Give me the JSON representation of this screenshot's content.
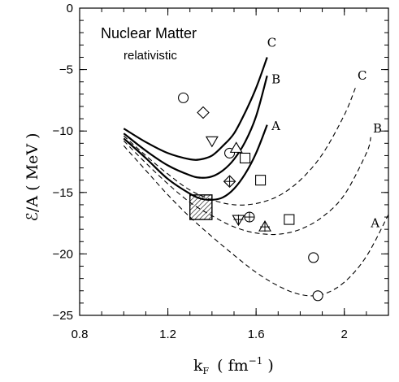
{
  "chart_data": {
    "type": "line",
    "title": "Nuclear Matter",
    "subtitle": "relativistic",
    "xlabel_main": "k",
    "xlabel_sub": "F",
    "xlabel_unit_open": "( fm",
    "xlabel_unit_exp": "−1",
    "xlabel_unit_close": ")",
    "ylabel": "ℰ/A  ( MeV )",
    "xlim": [
      0.8,
      2.2
    ],
    "ylim": [
      -25,
      0
    ],
    "xticks": [
      0.8,
      1.2,
      1.6,
      2.0
    ],
    "xtick_labels": [
      "0.8",
      "1.2",
      "1.6",
      "2"
    ],
    "yticks": [
      0,
      -5,
      -10,
      -15,
      -20,
      -25
    ],
    "ytick_labels": [
      "0",
      "−5",
      "−10",
      "−15",
      "−20",
      "−25"
    ],
    "series": [
      {
        "label": "C",
        "style": "solid",
        "label_at": [
          1.65,
          -2.8
        ],
        "x": [
          1.0,
          1.1,
          1.2,
          1.3,
          1.35,
          1.4,
          1.45,
          1.5,
          1.55,
          1.6,
          1.65
        ],
        "y": [
          -9.8,
          -10.9,
          -11.8,
          -12.3,
          -12.3,
          -12.0,
          -11.2,
          -10.2,
          -8.5,
          -6.5,
          -4.0
        ]
      },
      {
        "label": "B",
        "style": "solid",
        "label_at": [
          1.67,
          -5.8
        ],
        "x": [
          1.0,
          1.1,
          1.2,
          1.3,
          1.35,
          1.4,
          1.45,
          1.5,
          1.55,
          1.6,
          1.65
        ],
        "y": [
          -10.2,
          -11.6,
          -12.8,
          -13.6,
          -13.8,
          -13.7,
          -13.2,
          -12.3,
          -10.9,
          -8.8,
          -5.5
        ]
      },
      {
        "label": "A",
        "style": "solid",
        "label_at": [
          1.67,
          -9.6
        ],
        "x": [
          1.0,
          1.1,
          1.2,
          1.3,
          1.35,
          1.4,
          1.45,
          1.5,
          1.55,
          1.6,
          1.65
        ],
        "y": [
          -10.6,
          -12.2,
          -13.9,
          -15.1,
          -15.5,
          -15.6,
          -15.4,
          -14.7,
          -13.5,
          -11.8,
          -9.5
        ]
      },
      {
        "label": "C",
        "style": "dashed",
        "label_at": [
          2.06,
          -5.5
        ],
        "x": [
          1.0,
          1.1,
          1.2,
          1.3,
          1.4,
          1.5,
          1.6,
          1.7,
          1.8,
          1.9,
          2.0,
          2.05
        ],
        "y": [
          -10.4,
          -12.0,
          -13.5,
          -14.8,
          -15.6,
          -16.0,
          -15.9,
          -15.3,
          -14.0,
          -11.9,
          -8.7,
          -6.5
        ]
      },
      {
        "label": "B",
        "style": "dashed",
        "label_at": [
          2.13,
          -9.8
        ],
        "x": [
          1.0,
          1.1,
          1.2,
          1.3,
          1.4,
          1.5,
          1.6,
          1.7,
          1.8,
          1.9,
          2.0,
          2.1,
          2.12
        ],
        "y": [
          -10.8,
          -12.6,
          -14.3,
          -15.8,
          -16.9,
          -17.8,
          -18.3,
          -18.4,
          -18.0,
          -17.0,
          -15.2,
          -11.8,
          -10.5
        ]
      },
      {
        "label": "A",
        "style": "dashed",
        "label_at": [
          2.12,
          -17.5
        ],
        "x": [
          1.0,
          1.1,
          1.2,
          1.3,
          1.4,
          1.5,
          1.6,
          1.7,
          1.8,
          1.9,
          2.0,
          2.1,
          2.2
        ],
        "y": [
          -11.2,
          -13.2,
          -15.2,
          -17.0,
          -18.6,
          -20.1,
          -21.5,
          -22.6,
          -23.3,
          -23.3,
          -22.3,
          -20.2,
          -16.8
        ]
      }
    ],
    "markers": [
      {
        "shape": "circle",
        "x": 1.27,
        "y": -7.3
      },
      {
        "shape": "diamond",
        "x": 1.36,
        "y": -8.5
      },
      {
        "shape": "triangle-down",
        "x": 1.4,
        "y": -10.8
      },
      {
        "shape": "circle",
        "x": 1.48,
        "y": -11.8
      },
      {
        "shape": "triangle-up",
        "x": 1.51,
        "y": -11.4
      },
      {
        "shape": "square",
        "x": 1.55,
        "y": -12.2
      },
      {
        "shape": "diamond-plus",
        "x": 1.48,
        "y": -14.1
      },
      {
        "shape": "square",
        "x": 1.62,
        "y": -14.0
      },
      {
        "shape": "triangle-down-plus",
        "x": 1.52,
        "y": -17.2
      },
      {
        "shape": "circle-plus",
        "x": 1.57,
        "y": -17.0
      },
      {
        "shape": "triangle-up-plus",
        "x": 1.64,
        "y": -17.8
      },
      {
        "shape": "square",
        "x": 1.75,
        "y": -17.2
      },
      {
        "shape": "circle",
        "x": 1.86,
        "y": -20.3
      },
      {
        "shape": "circle",
        "x": 1.88,
        "y": -23.4
      }
    ],
    "empirical_box": {
      "x": [
        1.3,
        1.4
      ],
      "y": [
        -17.2,
        -15.2
      ]
    }
  }
}
